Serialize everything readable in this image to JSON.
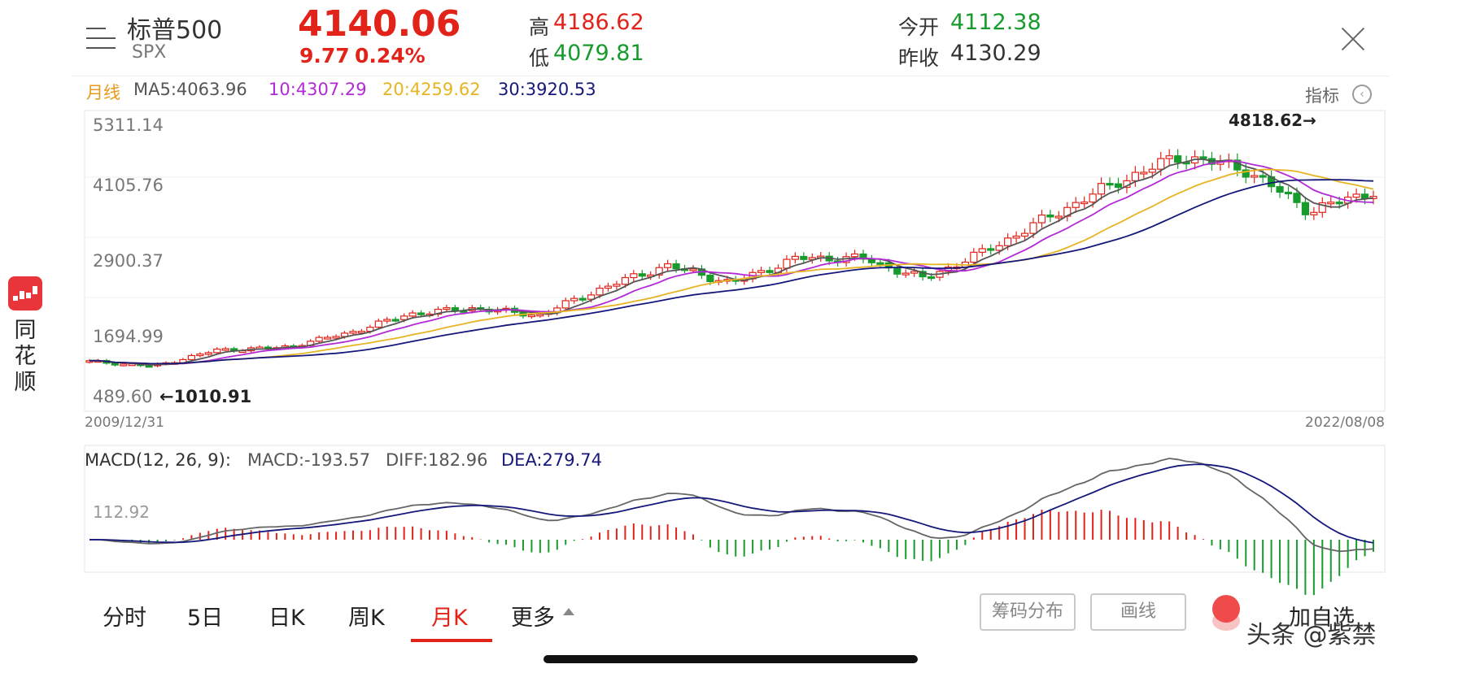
{
  "header": {
    "name": "标普500",
    "code": "SPX",
    "price": "4140.06",
    "change": "9.77",
    "change_pct": "0.24%",
    "high_label": "高",
    "high": "4186.62",
    "low_label": "低",
    "low": "4079.81",
    "open_label": "今开",
    "open": "4112.38",
    "prev_close_label": "昨收",
    "prev_close": "4130.29"
  },
  "ma_bar": {
    "period": "月线",
    "ma5": "MA5:4063.96",
    "ma10": "10:4307.29",
    "ma20": "20:4259.62",
    "ma30": "30:3920.53",
    "indicator_label": "指标"
  },
  "main_chart": {
    "y_ticks": [
      "5311.14",
      "4105.76",
      "2900.37",
      "1694.99",
      "489.60"
    ],
    "max_annotation": "4818.62→",
    "min_annotation": "←1010.91",
    "start_date": "2009/12/31",
    "end_date": "2022/08/08"
  },
  "macd": {
    "title": "MACD(12, 26, 9):",
    "macd": "MACD:-193.57",
    "diff": "DIFF:182.96",
    "dea": "DEA:279.74",
    "tick": "112.92"
  },
  "tabs": [
    {
      "label": "分时"
    },
    {
      "label": "5日"
    },
    {
      "label": "日K"
    },
    {
      "label": "周K"
    },
    {
      "label": "月K"
    },
    {
      "label": "更多"
    }
  ],
  "tools": {
    "chips_label": "筹码分布",
    "draw_label": "画线",
    "add_watch_label": "加自选"
  },
  "watermark": "头条 @紫禁",
  "side": {
    "chars": [
      "同",
      "花",
      "顺"
    ]
  },
  "colors": {
    "up": "#e2231a",
    "down": "#179b2c",
    "ma5": "#555555",
    "ma10": "#b22ad6",
    "ma20": "#e7b422",
    "ma30": "#15187a"
  },
  "chart_data": {
    "type": "candlestick",
    "frequency": "monthly",
    "x": [
      "2009-12",
      "2010-06",
      "2011-06",
      "2012-06",
      "2013-06",
      "2014-06",
      "2015-06",
      "2016-02",
      "2017-06",
      "2018-01",
      "2018-12",
      "2019-06",
      "2020-02",
      "2020-03",
      "2020-06",
      "2021-01",
      "2021-06",
      "2021-12",
      "2022-03",
      "2022-06",
      "2022-08"
    ],
    "close": [
      1115,
      1030,
      1320,
      1360,
      1610,
      1960,
      2063,
      1932,
      2423,
      2823,
      2506,
      2942,
      2954,
      2585,
      3100,
      3714,
      4297,
      4766,
      4530,
      3785,
      4140
    ],
    "y_range": [
      489.6,
      5311.14
    ],
    "ma_latest": {
      "MA5": 4063.96,
      "MA10": 4307.29,
      "MA20": 4259.62,
      "MA30": 3920.53
    },
    "high_marker": 4818.62,
    "low_marker": 1010.91,
    "macd_latest": {
      "MACD": -193.57,
      "DIFF": 182.96,
      "DEA": 279.74
    }
  }
}
